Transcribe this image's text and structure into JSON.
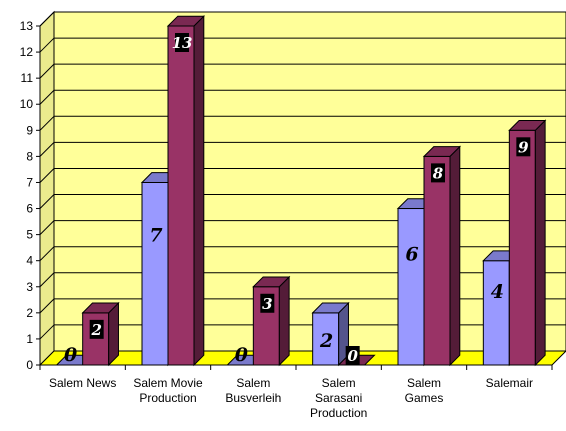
{
  "chart_data": {
    "type": "bar",
    "categories": [
      [
        "Salem News"
      ],
      [
        "Salem Movie",
        "Production"
      ],
      [
        "Salem",
        "Busverleih"
      ],
      [
        "Salem",
        "Sarasani",
        "Production"
      ],
      [
        "Salem",
        "Games"
      ],
      [
        "Salemair"
      ]
    ],
    "series": [
      {
        "values": [
          0,
          7,
          0,
          2,
          6,
          4
        ],
        "color": "#9999ff"
      },
      {
        "values": [
          2,
          13,
          3,
          0,
          8,
          9
        ],
        "color": "#993366"
      }
    ],
    "y_ticks": [
      "0",
      "1",
      "2",
      "3",
      "4",
      "5",
      "6",
      "7",
      "8",
      "9",
      "10",
      "11",
      "12",
      "13"
    ],
    "ylim": [
      0,
      13
    ],
    "grid": true,
    "wall_color": "#ffff99",
    "floor_color": "#ffff00",
    "style": "3d-columns"
  }
}
